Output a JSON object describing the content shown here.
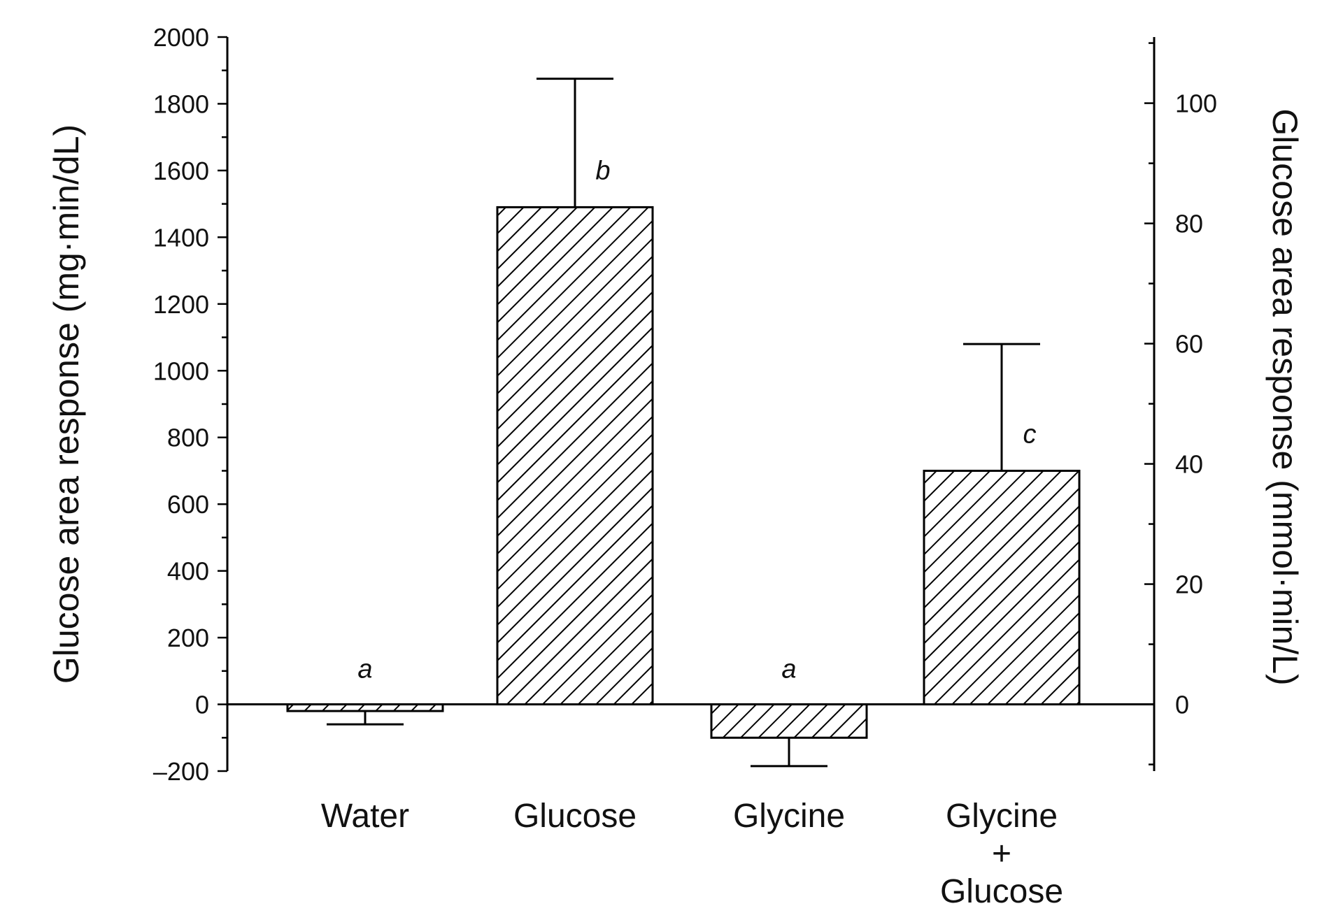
{
  "chart_data": {
    "type": "bar",
    "categories": [
      "Water",
      "Glucose",
      "Glycine",
      "Glycine\n+\nGlucose"
    ],
    "values": [
      -20,
      1490,
      -100,
      700
    ],
    "error_bars": [
      -60,
      1875,
      -185,
      1080
    ],
    "significance_letters": [
      "a",
      "b",
      "a",
      "c"
    ],
    "ylabel": "Glucose area response (mg·min/dL)",
    "y2label": "Glucose area response (mmol·min/L)",
    "ylim": [
      -200,
      2000
    ],
    "yticks": [
      -200,
      0,
      200,
      400,
      600,
      800,
      1000,
      1200,
      1400,
      1600,
      1800,
      2000
    ],
    "y2ticks": [
      0,
      20,
      40,
      60,
      80,
      100
    ],
    "y2_scale_mmol_per_mgdl": 0.0555,
    "bar_fill": "diagonal-hatch",
    "grid": false,
    "legend": "none"
  }
}
